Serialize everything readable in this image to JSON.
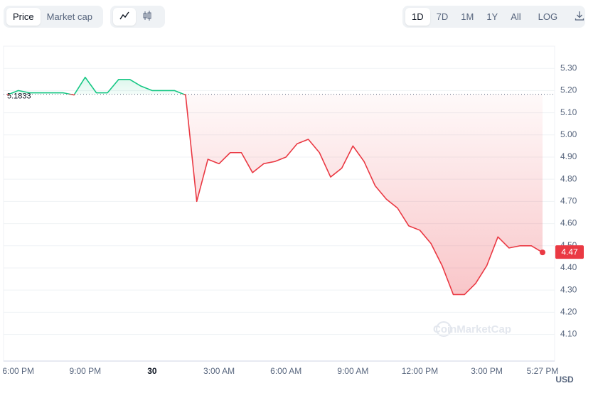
{
  "ui": {
    "price": "Price",
    "market_cap": "Market cap",
    "ranges": [
      "1D",
      "7D",
      "1M",
      "1Y",
      "All"
    ],
    "log": "LOG",
    "currency": "USD",
    "watermark": "CoinMarketCap"
  },
  "chart_data": {
    "type": "line",
    "categories": [
      null,
      "6:00 PM",
      null,
      null,
      null,
      null,
      null,
      "9:00 PM",
      null,
      null,
      null,
      null,
      null,
      "30",
      null,
      null,
      null,
      null,
      null,
      "3:00 AM",
      null,
      null,
      null,
      null,
      null,
      "6:00 AM",
      null,
      null,
      null,
      null,
      null,
      "9:00 AM",
      null,
      null,
      null,
      null,
      null,
      "12:00 PM",
      null,
      null,
      null,
      null,
      null,
      "3:00 PM",
      null,
      null,
      null,
      null,
      "5:27 PM"
    ],
    "series": [
      {
        "values": [
          5.18,
          5.2,
          5.19,
          5.19,
          5.19,
          5.19,
          5.18,
          5.26,
          5.19,
          5.19,
          5.25,
          5.25,
          5.22,
          5.2,
          5.2,
          5.2,
          5.18,
          4.7,
          4.89,
          4.87,
          4.92,
          4.92,
          4.83,
          4.87,
          4.88,
          4.9,
          4.96,
          4.98,
          4.92,
          4.81,
          4.85,
          4.95,
          4.88,
          4.77,
          4.71,
          4.67,
          4.59,
          4.57,
          4.51,
          4.41,
          4.28,
          4.28,
          4.33,
          4.41,
          4.54,
          4.49,
          4.5,
          4.5,
          4.47
        ]
      }
    ],
    "reference": 5.1833,
    "up_color": "#16c784",
    "down_color": "#ea3943",
    "ylim": [
      3.98,
      5.4
    ],
    "yticks": [
      {
        "value": 4.1,
        "label": "4.10"
      },
      {
        "value": 4.2,
        "label": "4.20"
      },
      {
        "value": 4.3,
        "label": "4.30"
      },
      {
        "value": 4.4,
        "label": "4.40"
      },
      {
        "value": 4.5,
        "label": "4.50"
      },
      {
        "value": 4.6,
        "label": "4.60"
      },
      {
        "value": 4.7,
        "label": "4.70"
      },
      {
        "value": 4.8,
        "label": "4.80"
      },
      {
        "value": 4.9,
        "label": "4.90"
      },
      {
        "value": 5.0,
        "label": "5.00"
      },
      {
        "value": 5.1,
        "label": "5.10"
      },
      {
        "value": 5.2,
        "label": "5.20"
      },
      {
        "value": 5.3,
        "label": "5.30"
      }
    ],
    "grid": true
  }
}
